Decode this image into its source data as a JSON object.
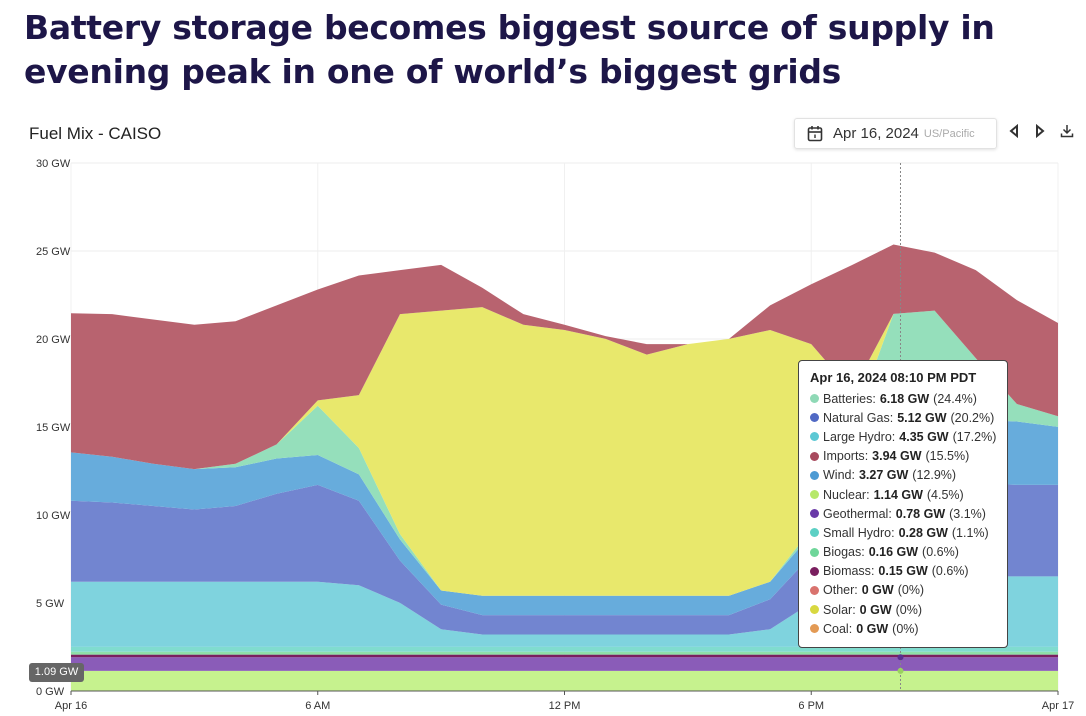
{
  "headline": "Battery storage becomes biggest source of supply in evening peak in one of world’s biggest grids",
  "header": {
    "chart_title": "Fuel Mix - CAISO",
    "date": "Apr 16, 2024",
    "timezone": "US/Pacific",
    "prev_icon": "triangle-left-icon",
    "next_icon": "triangle-right-icon",
    "download_icon": "download-icon",
    "calendar_icon": "calendar-icon"
  },
  "crosshair_badge": "1.09 GW",
  "tooltip": {
    "title": "Apr 16, 2024 08:10 PM PDT",
    "rows": [
      {
        "name": "Batteries",
        "value": "6.18 GW",
        "pct": "(24.4%)",
        "color": "#8fd9b6"
      },
      {
        "name": "Natural Gas",
        "value": "5.12 GW",
        "pct": "(20.2%)",
        "color": "#5069c4"
      },
      {
        "name": "Large Hydro",
        "value": "4.35 GW",
        "pct": "(17.2%)",
        "color": "#5cc8d4"
      },
      {
        "name": "Imports",
        "value": "3.94 GW",
        "pct": "(15.5%)",
        "color": "#a84a5e"
      },
      {
        "name": "Wind",
        "value": "3.27 GW",
        "pct": "(12.9%)",
        "color": "#4d9bd4"
      },
      {
        "name": "Nuclear",
        "value": "1.14 GW",
        "pct": "(4.5%)",
        "color": "#b6e86a"
      },
      {
        "name": "Geothermal",
        "value": "0.78 GW",
        "pct": "(3.1%)",
        "color": "#6a3aa8"
      },
      {
        "name": "Small Hydro",
        "value": "0.28 GW",
        "pct": "(1.1%)",
        "color": "#5cd0c4"
      },
      {
        "name": "Biogas",
        "value": "0.16 GW",
        "pct": "(0.6%)",
        "color": "#6fd69a"
      },
      {
        "name": "Biomass",
        "value": "0.15 GW",
        "pct": "(0.6%)",
        "color": "#7a1f5f"
      },
      {
        "name": "Other",
        "value": "0 GW",
        "pct": "(0%)",
        "color": "#d9736e"
      },
      {
        "name": "Solar",
        "value": "0 GW",
        "pct": "(0%)",
        "color": "#d8d840"
      },
      {
        "name": "Coal",
        "value": "0 GW",
        "pct": "(0%)",
        "color": "#e39a55"
      }
    ]
  },
  "chart_data": {
    "type": "area",
    "stacked": true,
    "x": [
      0,
      1,
      2,
      3,
      4,
      5,
      6,
      7,
      8,
      9,
      10,
      11,
      12,
      13,
      14,
      15,
      16,
      17,
      18,
      19,
      20,
      21,
      22,
      23,
      24
    ],
    "x_ticks": [
      {
        "hour": 0,
        "label": "Apr 16"
      },
      {
        "hour": 6,
        "label": "6 AM"
      },
      {
        "hour": 12,
        "label": "12 PM"
      },
      {
        "hour": 18,
        "label": "6 PM"
      },
      {
        "hour": 24,
        "label": "Apr 17"
      }
    ],
    "y_ticks": [
      "0 GW",
      "5 GW",
      "10 GW",
      "15 GW",
      "20 GW",
      "25 GW",
      "30 GW"
    ],
    "ylim": [
      0,
      30
    ],
    "grid": true,
    "crosshair_hour": 20.17,
    "series": [
      {
        "name": "Nuclear",
        "color": "#c6f28e",
        "values": [
          1.14,
          1.14,
          1.14,
          1.14,
          1.14,
          1.14,
          1.14,
          1.14,
          1.14,
          1.14,
          1.14,
          1.14,
          1.14,
          1.14,
          1.14,
          1.14,
          1.14,
          1.14,
          1.14,
          1.14,
          1.14,
          1.14,
          1.14,
          1.14,
          1.14
        ]
      },
      {
        "name": "Geothermal",
        "color": "#8a5cb8",
        "values": [
          0.78,
          0.78,
          0.78,
          0.78,
          0.78,
          0.78,
          0.78,
          0.78,
          0.78,
          0.78,
          0.78,
          0.78,
          0.78,
          0.78,
          0.78,
          0.78,
          0.78,
          0.78,
          0.78,
          0.78,
          0.78,
          0.78,
          0.78,
          0.78,
          0.78
        ]
      },
      {
        "name": "Biomass",
        "color": "#7a1f5f",
        "values": [
          0.15,
          0.15,
          0.15,
          0.15,
          0.15,
          0.15,
          0.15,
          0.15,
          0.15,
          0.15,
          0.15,
          0.15,
          0.15,
          0.15,
          0.15,
          0.15,
          0.15,
          0.15,
          0.15,
          0.15,
          0.15,
          0.15,
          0.15,
          0.15,
          0.15
        ]
      },
      {
        "name": "Biogas",
        "color": "#8ee0a8",
        "values": [
          0.16,
          0.16,
          0.16,
          0.16,
          0.16,
          0.16,
          0.16,
          0.16,
          0.16,
          0.16,
          0.16,
          0.16,
          0.16,
          0.16,
          0.16,
          0.16,
          0.16,
          0.16,
          0.16,
          0.16,
          0.16,
          0.16,
          0.16,
          0.16,
          0.16
        ]
      },
      {
        "name": "Small Hydro",
        "color": "#80dccf",
        "values": [
          0.28,
          0.28,
          0.28,
          0.28,
          0.28,
          0.28,
          0.28,
          0.28,
          0.28,
          0.28,
          0.28,
          0.28,
          0.28,
          0.28,
          0.28,
          0.28,
          0.28,
          0.28,
          0.28,
          0.28,
          0.28,
          0.28,
          0.28,
          0.28,
          0.28
        ]
      },
      {
        "name": "Large Hydro",
        "color": "#7fd3de",
        "values": [
          3.7,
          3.7,
          3.7,
          3.7,
          3.7,
          3.7,
          3.7,
          3.5,
          2.5,
          1.0,
          0.7,
          0.7,
          0.7,
          0.7,
          0.7,
          0.7,
          0.7,
          1.0,
          2.5,
          4.0,
          4.35,
          4.2,
          4.0,
          4.0,
          4.0
        ]
      },
      {
        "name": "Natural Gas",
        "color": "#7285d0",
        "values": [
          4.6,
          4.5,
          4.3,
          4.1,
          4.3,
          5.0,
          5.5,
          4.8,
          2.4,
          1.4,
          1.1,
          1.1,
          1.1,
          1.1,
          1.1,
          1.1,
          1.1,
          1.7,
          2.7,
          4.3,
          5.12,
          5.4,
          5.3,
          5.2,
          5.2
        ]
      },
      {
        "name": "Wind",
        "color": "#67acdc",
        "values": [
          2.75,
          2.6,
          2.4,
          2.3,
          2.2,
          2.0,
          1.7,
          1.5,
          1.2,
          0.8,
          1.1,
          1.1,
          1.1,
          1.1,
          1.1,
          1.1,
          1.1,
          1.0,
          1.2,
          1.7,
          3.27,
          3.5,
          3.6,
          3.6,
          3.3
        ]
      },
      {
        "name": "Batteries",
        "color": "#95dfbb",
        "values": [
          0,
          0,
          0,
          0,
          0.2,
          0.8,
          2.8,
          1.5,
          0.3,
          0,
          0,
          0,
          0,
          0,
          0,
          0,
          0,
          0,
          0.3,
          2.5,
          6.18,
          6.0,
          3.5,
          1.0,
          0.6
        ]
      },
      {
        "name": "Solar",
        "color": "#e8e86c",
        "values": [
          0,
          0,
          0,
          0,
          0,
          0,
          0.3,
          3,
          12.5,
          15.9,
          16.4,
          15.4,
          15.1,
          14.6,
          13.7,
          14.3,
          14.6,
          14.3,
          10.5,
          2,
          0,
          0,
          0,
          0,
          0
        ]
      },
      {
        "name": "Imports",
        "color": "#b8636f",
        "values": [
          7.9,
          8.1,
          8.2,
          8.2,
          8.1,
          7.9,
          6.3,
          6.8,
          2.5,
          2.6,
          1.1,
          0.6,
          0.3,
          0.15,
          0.6,
          0,
          0,
          1.4,
          3.4,
          7.2,
          3.94,
          3.3,
          5.0,
          5.9,
          5.3
        ]
      },
      {
        "name": "Other",
        "color": "#d9736e",
        "values": [
          0,
          0,
          0,
          0,
          0,
          0,
          0,
          0,
          0,
          0,
          0,
          0,
          0,
          0,
          0,
          0,
          0,
          0,
          0,
          0,
          0,
          0,
          0,
          0,
          0
        ]
      },
      {
        "name": "Coal",
        "color": "#e39a55",
        "values": [
          0,
          0,
          0,
          0,
          0,
          0,
          0,
          0,
          0,
          0,
          0,
          0,
          0,
          0,
          0,
          0,
          0,
          0,
          0,
          0,
          0,
          0,
          0,
          0,
          0
        ]
      }
    ]
  }
}
